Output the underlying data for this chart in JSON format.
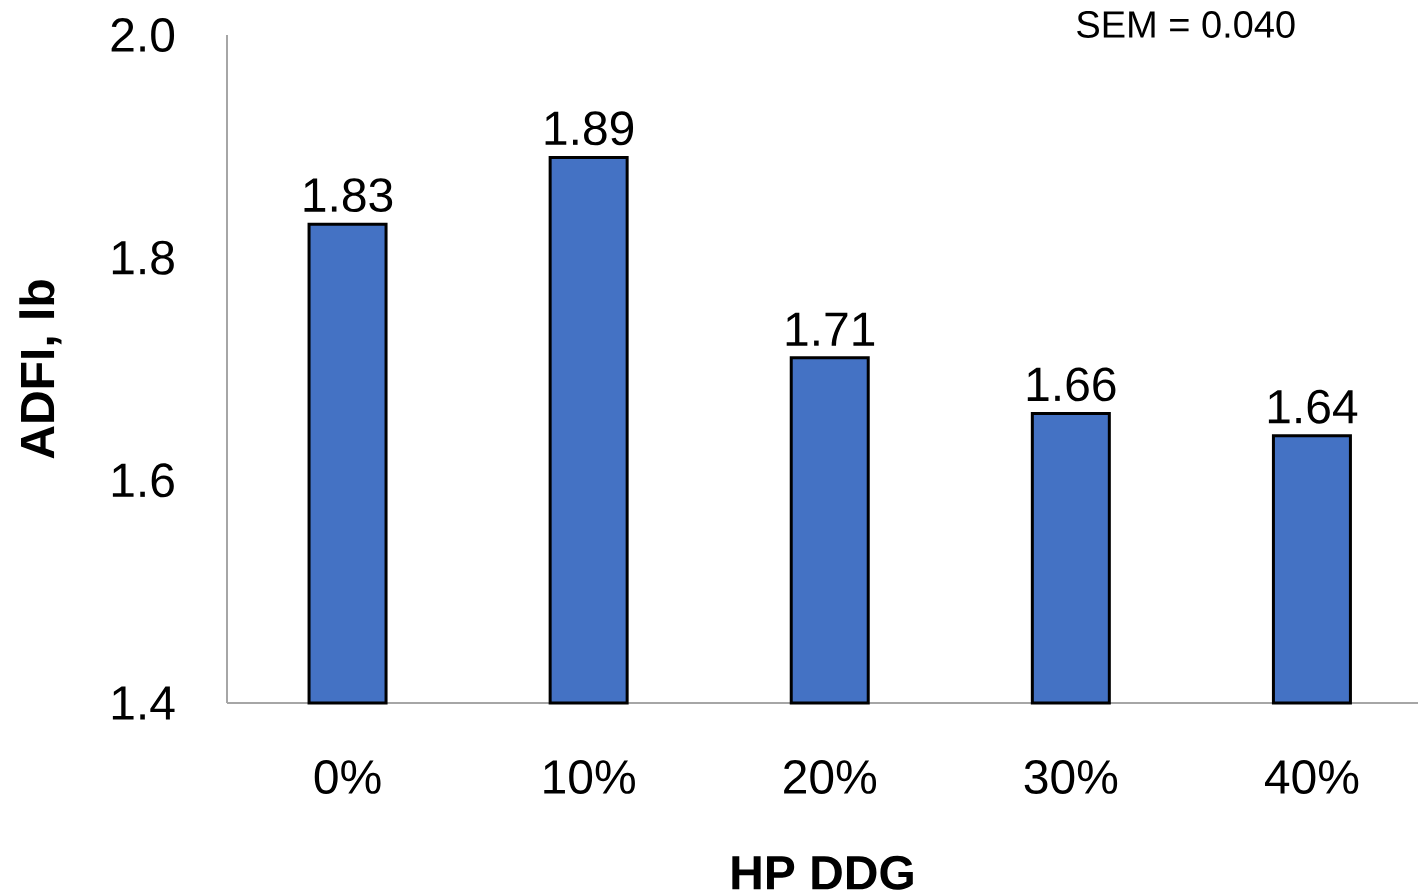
{
  "chart_data": {
    "type": "bar",
    "categories": [
      "0%",
      "10%",
      "20%",
      "30%",
      "40%"
    ],
    "values": [
      1.83,
      1.89,
      1.71,
      1.66,
      1.64
    ],
    "color": "#4472c4",
    "xlabel": "HP DDG",
    "ylabel": "ADFI, lb",
    "ylim": [
      1.4,
      2.0
    ],
    "yticks": [
      1.4,
      1.6,
      1.8,
      {
        "value": 2.0,
        "label": "2.0"
      }
    ],
    "data_labels": true,
    "grid": false,
    "annotations": [
      "SEM = 0.040"
    ]
  }
}
